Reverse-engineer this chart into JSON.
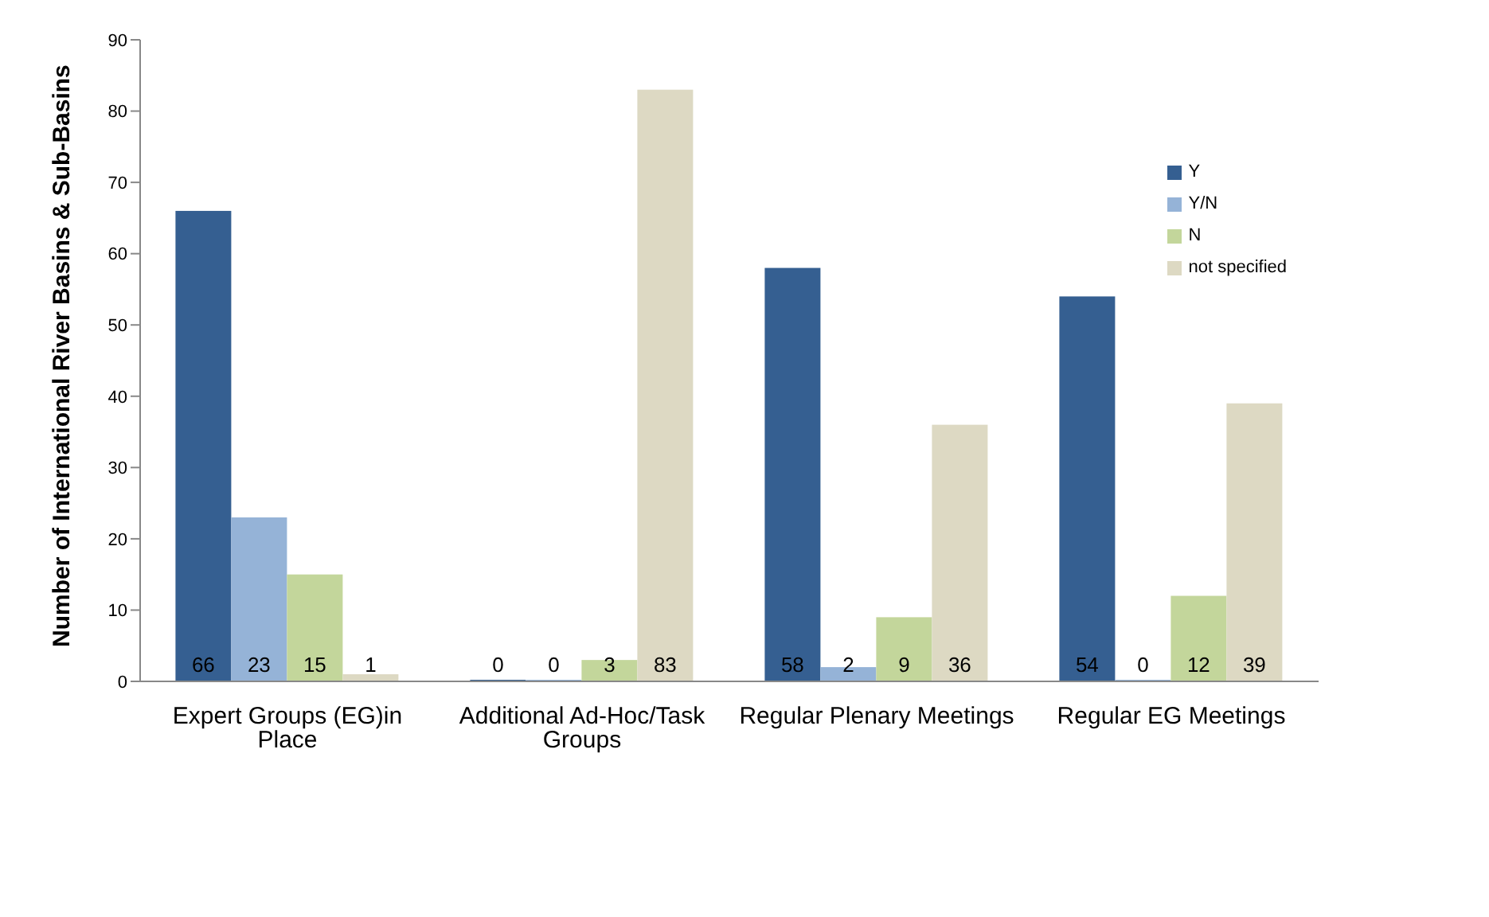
{
  "chart_data": {
    "type": "bar",
    "ylabel": "Number of International River Basins & Sub-Basins",
    "categories": [
      "Expert Groups (EG)in Place",
      "Additional Ad-Hoc/Task Groups",
      "Regular Plenary Meetings",
      "Regular EG Meetings"
    ],
    "series": [
      {
        "name": "Y",
        "color": "#355f91",
        "values": [
          66,
          0,
          58,
          54
        ]
      },
      {
        "name": "Y/N",
        "color": "#95b3d7",
        "values": [
          23,
          0,
          2,
          0
        ]
      },
      {
        "name": "N",
        "color": "#c3d69b",
        "values": [
          15,
          3,
          9,
          12
        ]
      },
      {
        "name": "not specified",
        "color": "#ddd9c3",
        "values": [
          1,
          83,
          36,
          39
        ]
      }
    ],
    "ylim": [
      0,
      90
    ],
    "yticks": [
      0,
      10,
      20,
      30,
      40,
      50,
      60,
      70,
      80,
      90
    ],
    "grid": false,
    "legend": "top right",
    "data_labels": true
  }
}
